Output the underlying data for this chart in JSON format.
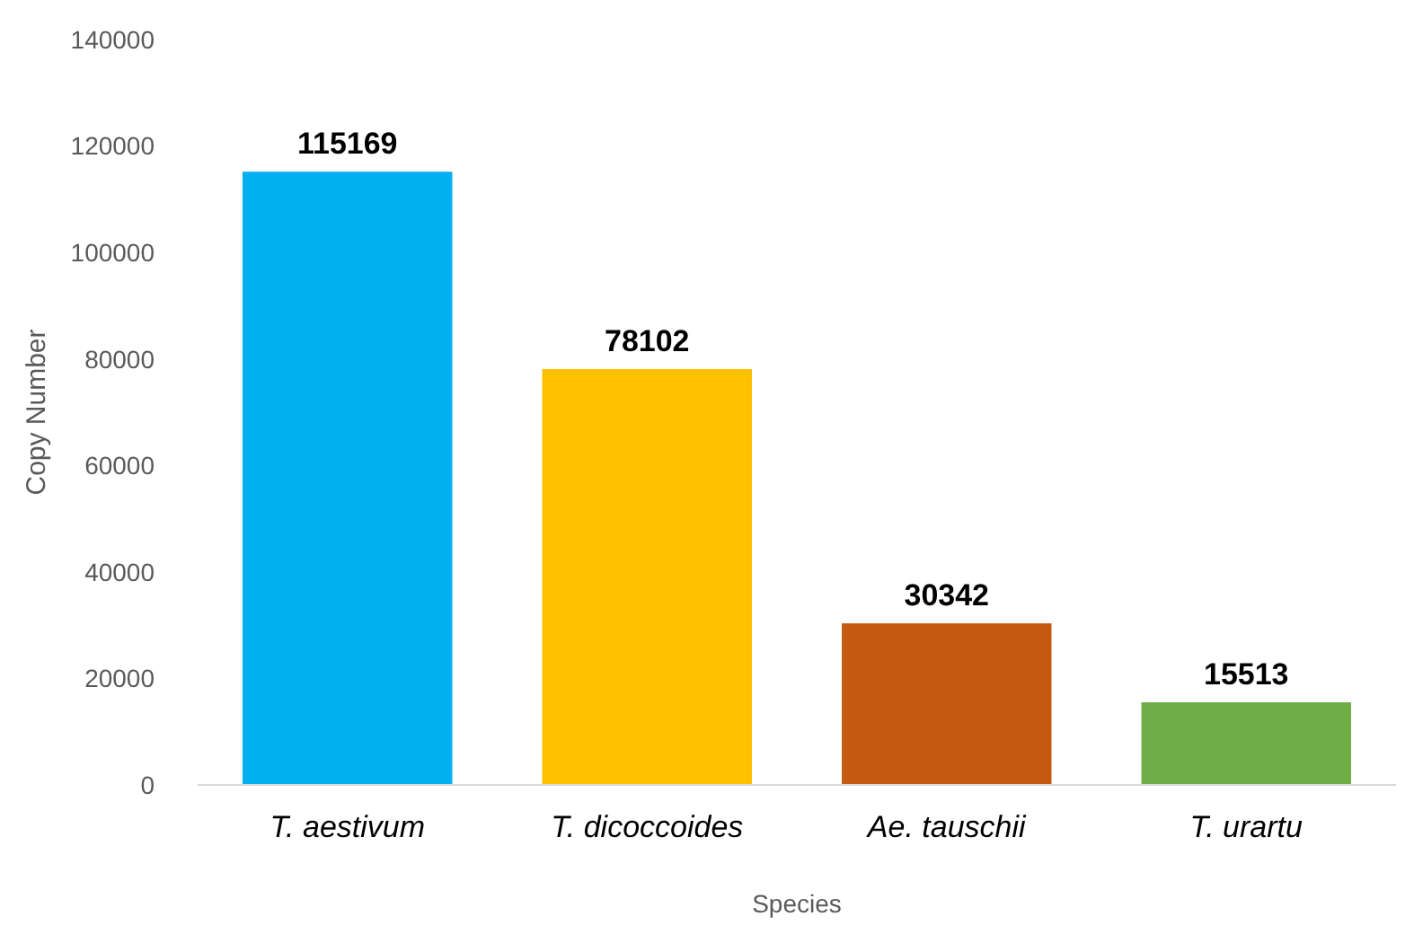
{
  "chart_data": {
    "type": "bar",
    "xlabel": "Species",
    "ylabel": "Copy Number",
    "categories": [
      "T. aestivum",
      "T. dicoccoides",
      "Ae. tauschii",
      "T. urartu"
    ],
    "values": [
      115169,
      78102,
      30342,
      15513
    ],
    "colors": [
      "#00b0f0",
      "#ffc000",
      "#c55a11",
      "#70ad47"
    ],
    "ylim": [
      0,
      140000
    ],
    "yticks": [
      0,
      20000,
      40000,
      60000,
      80000,
      100000,
      120000,
      140000
    ],
    "grid": false,
    "data_labels": true
  }
}
